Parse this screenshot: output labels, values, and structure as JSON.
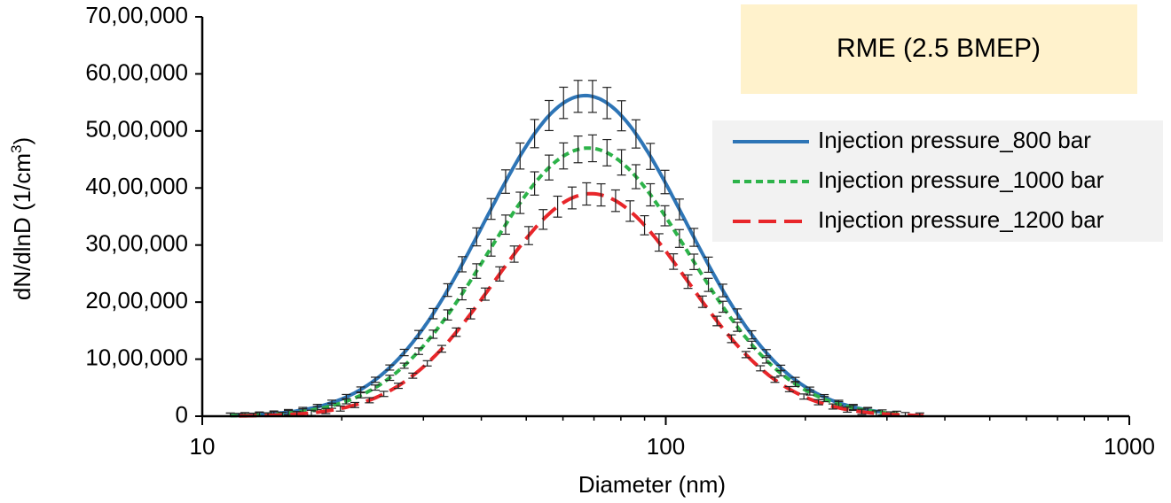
{
  "chart_data": {
    "type": "line",
    "title": "RME (2.5 BMEP)",
    "xlabel": "Diameter (nm)",
    "ylabel": "dN/dlnD (1/cm",
    "ylabel_sup": "3",
    "ylabel_end": ")",
    "x_scale": "log",
    "xlim": [
      10,
      1000
    ],
    "ylim": [
      0,
      7000000
    ],
    "x_ticks": [
      10,
      100,
      1000
    ],
    "x_tick_labels": [
      "10",
      "100",
      "1000"
    ],
    "y_ticks": [
      0,
      1000000,
      2000000,
      3000000,
      4000000,
      5000000,
      6000000,
      7000000
    ],
    "y_tick_labels": [
      "0",
      "10,00,000",
      "20,00,000",
      "30,00,000",
      "40,00,000",
      "50,00,000",
      "60,00,000",
      "70,00,000"
    ],
    "grid": false,
    "legend_position": "right",
    "error_bars": true,
    "title_box_color": "#FFF2CC",
    "legend_box_color": "#F2F2F2",
    "series": [
      {
        "name": "Injection pressure_800 bar",
        "color": "#2E75B6",
        "dash": "solid",
        "peak": 5620000,
        "x_peak": 67,
        "sigma_ln": 0.5,
        "x_start": 11.5,
        "x_end": 290
      },
      {
        "name": "Injection pressure_1000 bar",
        "color": "#2DB34A",
        "dash": "short",
        "peak": 4700000,
        "x_peak": 68,
        "sigma_ln": 0.5,
        "x_start": 11.5,
        "x_end": 320
      },
      {
        "name": "Injection pressure_1200 bar",
        "color": "#E8262A",
        "dash": "long",
        "peak": 3900000,
        "x_peak": 69,
        "sigma_ln": 0.48,
        "x_start": 12,
        "x_end": 360
      }
    ]
  }
}
